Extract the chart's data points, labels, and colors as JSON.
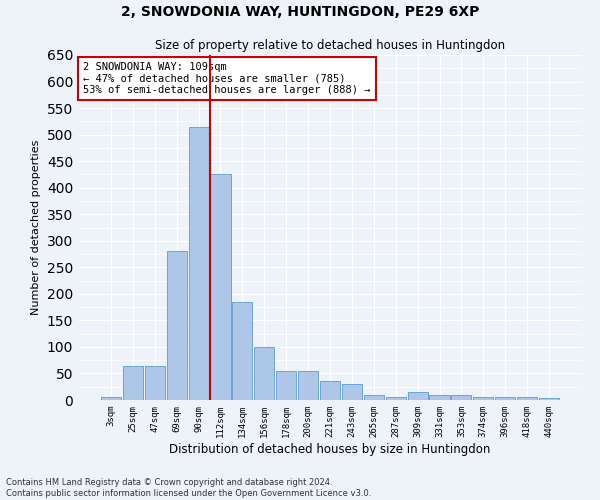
{
  "title": "2, SNOWDONIA WAY, HUNTINGDON, PE29 6XP",
  "subtitle": "Size of property relative to detached houses in Huntingdon",
  "xlabel": "Distribution of detached houses by size in Huntingdon",
  "ylabel": "Number of detached properties",
  "bar_labels": [
    "3sqm",
    "25sqm",
    "47sqm",
    "69sqm",
    "90sqm",
    "112sqm",
    "134sqm",
    "156sqm",
    "178sqm",
    "200sqm",
    "221sqm",
    "243sqm",
    "265sqm",
    "287sqm",
    "309sqm",
    "331sqm",
    "353sqm",
    "374sqm",
    "396sqm",
    "418sqm",
    "440sqm"
  ],
  "bar_heights": [
    5,
    65,
    65,
    280,
    515,
    425,
    185,
    100,
    55,
    55,
    35,
    30,
    10,
    5,
    15,
    10,
    10,
    5,
    5,
    5,
    3
  ],
  "bar_color": "#aec6e8",
  "bar_edge_color": "#5b9bd5",
  "background_color": "#eef2f9",
  "grid_color": "#ffffff",
  "vline_color": "#cc0000",
  "vline_x": 4.5,
  "annotation_text": "2 SNOWDONIA WAY: 109sqm\n← 47% of detached houses are smaller (785)\n53% of semi-detached houses are larger (888) →",
  "annotation_box_facecolor": "#ffffff",
  "annotation_box_edgecolor": "#cc0000",
  "ylim": [
    0,
    650
  ],
  "yticks": [
    0,
    50,
    100,
    150,
    200,
    250,
    300,
    350,
    400,
    450,
    500,
    550,
    600,
    650
  ],
  "footer_line1": "Contains HM Land Registry data © Crown copyright and database right 2024.",
  "footer_line2": "Contains public sector information licensed under the Open Government Licence v3.0."
}
